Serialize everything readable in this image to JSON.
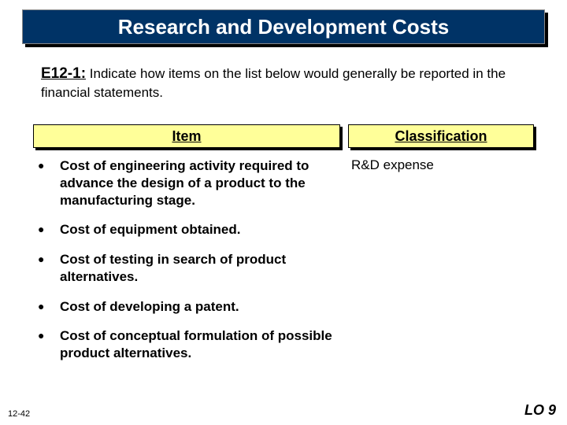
{
  "title": "Research and Development Costs",
  "instruction": {
    "label": "E12-1:",
    "text": "Indicate how items on the list below would generally be reported in the financial statements."
  },
  "columns": {
    "item": "Item",
    "classification": "Classification"
  },
  "items": [
    {
      "text": "Cost of engineering activity required to advance the design of a product to the manufacturing stage.",
      "classification": "R&D expense"
    },
    {
      "text": "Cost of equipment obtained.",
      "classification": ""
    },
    {
      "text": "Cost of testing in search of product alternatives.",
      "classification": ""
    },
    {
      "text": "Cost of developing a patent.",
      "classification": ""
    },
    {
      "text": "Cost of conceptual formulation of possible product alternatives.",
      "classification": ""
    }
  ],
  "footer": {
    "slide_number": "12-42",
    "lo": "LO 9"
  },
  "colors": {
    "title_bg": "#003366",
    "title_text": "#ffffff",
    "header_bg": "#ffff99",
    "shadow": "#000000",
    "page_bg": "#ffffff"
  },
  "fonts": {
    "title_size_pt": 20,
    "body_size_pt": 13,
    "header_size_pt": 14
  }
}
